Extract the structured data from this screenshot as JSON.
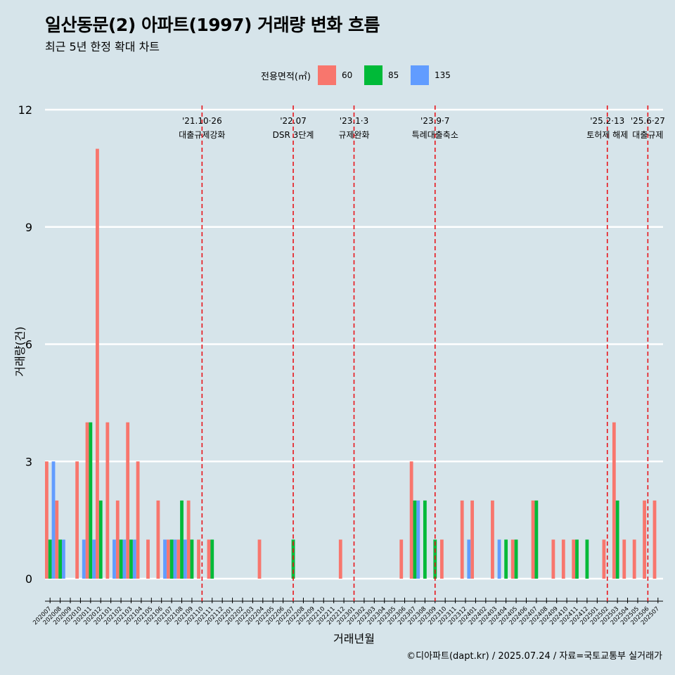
{
  "title": "일산동문(2) 아파트(1997) 거래량 변화 흐름",
  "subtitle": "최근 5년 한정 확대 차트",
  "caption": "©디아파트(dapt.kr) / 2025.07.24 / 자료=국토교통부 실거래가",
  "legend": {
    "title": "전용면적(㎡)",
    "items": [
      {
        "label": "60",
        "color": "#f8766d"
      },
      {
        "label": "85",
        "color": "#00ba38"
      },
      {
        "label": "135",
        "color": "#619cff"
      }
    ]
  },
  "chart_data": {
    "type": "bar",
    "xlabel": "거래년월",
    "ylabel": "거래량(건)",
    "ylim": [
      0,
      12
    ],
    "yticks": [
      0,
      3,
      6,
      9,
      12
    ],
    "grid": true,
    "legend_position": "top",
    "categories": [
      "202007",
      "202008",
      "202009",
      "202010",
      "202011",
      "202012",
      "202101",
      "202102",
      "202103",
      "202104",
      "202105",
      "202106",
      "202107",
      "202108",
      "202109",
      "202110",
      "202111",
      "202112",
      "202201",
      "202202",
      "202203",
      "202204",
      "202205",
      "202206",
      "202207",
      "202208",
      "202209",
      "202210",
      "202211",
      "202212",
      "202301",
      "202302",
      "202303",
      "202304",
      "202305",
      "202306",
      "202307",
      "202308",
      "202309",
      "202310",
      "202311",
      "202312",
      "202401",
      "202402",
      "202403",
      "202404",
      "202405",
      "202406",
      "202407",
      "202408",
      "202409",
      "202410",
      "202411",
      "202412",
      "202501",
      "202502",
      "202503",
      "202504",
      "202505",
      "202506",
      "202507"
    ],
    "series": [
      {
        "name": "60",
        "color": "#f8766d",
        "values": [
          3,
          2,
          0,
          3,
          4,
          11,
          4,
          2,
          4,
          3,
          1,
          2,
          1,
          1,
          2,
          1,
          1,
          0,
          0,
          0,
          0,
          1,
          0,
          0,
          0,
          0,
          0,
          0,
          0,
          1,
          0,
          0,
          0,
          0,
          0,
          1,
          3,
          0,
          0,
          1,
          0,
          2,
          2,
          0,
          2,
          0,
          1,
          0,
          2,
          0,
          1,
          1,
          1,
          0,
          0,
          1,
          4,
          1,
          1,
          2,
          2
        ]
      },
      {
        "name": "85",
        "color": "#00ba38",
        "values": [
          1,
          1,
          0,
          0,
          4,
          2,
          0,
          1,
          1,
          0,
          0,
          0,
          1,
          2,
          1,
          0,
          1,
          0,
          0,
          0,
          0,
          0,
          0,
          0,
          1,
          0,
          0,
          0,
          0,
          0,
          0,
          0,
          0,
          0,
          0,
          0,
          2,
          2,
          1,
          0,
          0,
          0,
          0,
          0,
          0,
          1,
          1,
          0,
          2,
          0,
          0,
          0,
          1,
          1,
          0,
          0,
          2,
          0,
          0,
          0,
          0
        ]
      },
      {
        "name": "135",
        "color": "#619cff",
        "values": [
          3,
          1,
          0,
          1,
          1,
          0,
          1,
          1,
          1,
          0,
          0,
          1,
          1,
          1,
          0,
          0,
          0,
          0,
          0,
          0,
          0,
          0,
          0,
          0,
          0,
          0,
          0,
          0,
          0,
          0,
          0,
          0,
          0,
          0,
          0,
          0,
          2,
          0,
          0,
          0,
          0,
          1,
          0,
          0,
          1,
          0,
          0,
          0,
          0,
          0,
          0,
          0,
          0,
          0,
          0,
          0,
          0,
          0,
          0,
          0,
          0
        ]
      }
    ],
    "annotations": [
      {
        "at": "202110",
        "date": "'21.10·26",
        "label": "대출규제강화"
      },
      {
        "at": "202207",
        "date": "'22.07",
        "label": "DSR 3단계"
      },
      {
        "at": "202301",
        "date": "'23.1·3",
        "label": "규제완화"
      },
      {
        "at": "202309",
        "date": "'23.9·7",
        "label": "특례대출축소"
      },
      {
        "at": "202502",
        "date": "'25.2·13",
        "label": "토허제 해제"
      },
      {
        "at": "202506",
        "date": "'25.6·27",
        "label": "대출규제"
      }
    ]
  }
}
